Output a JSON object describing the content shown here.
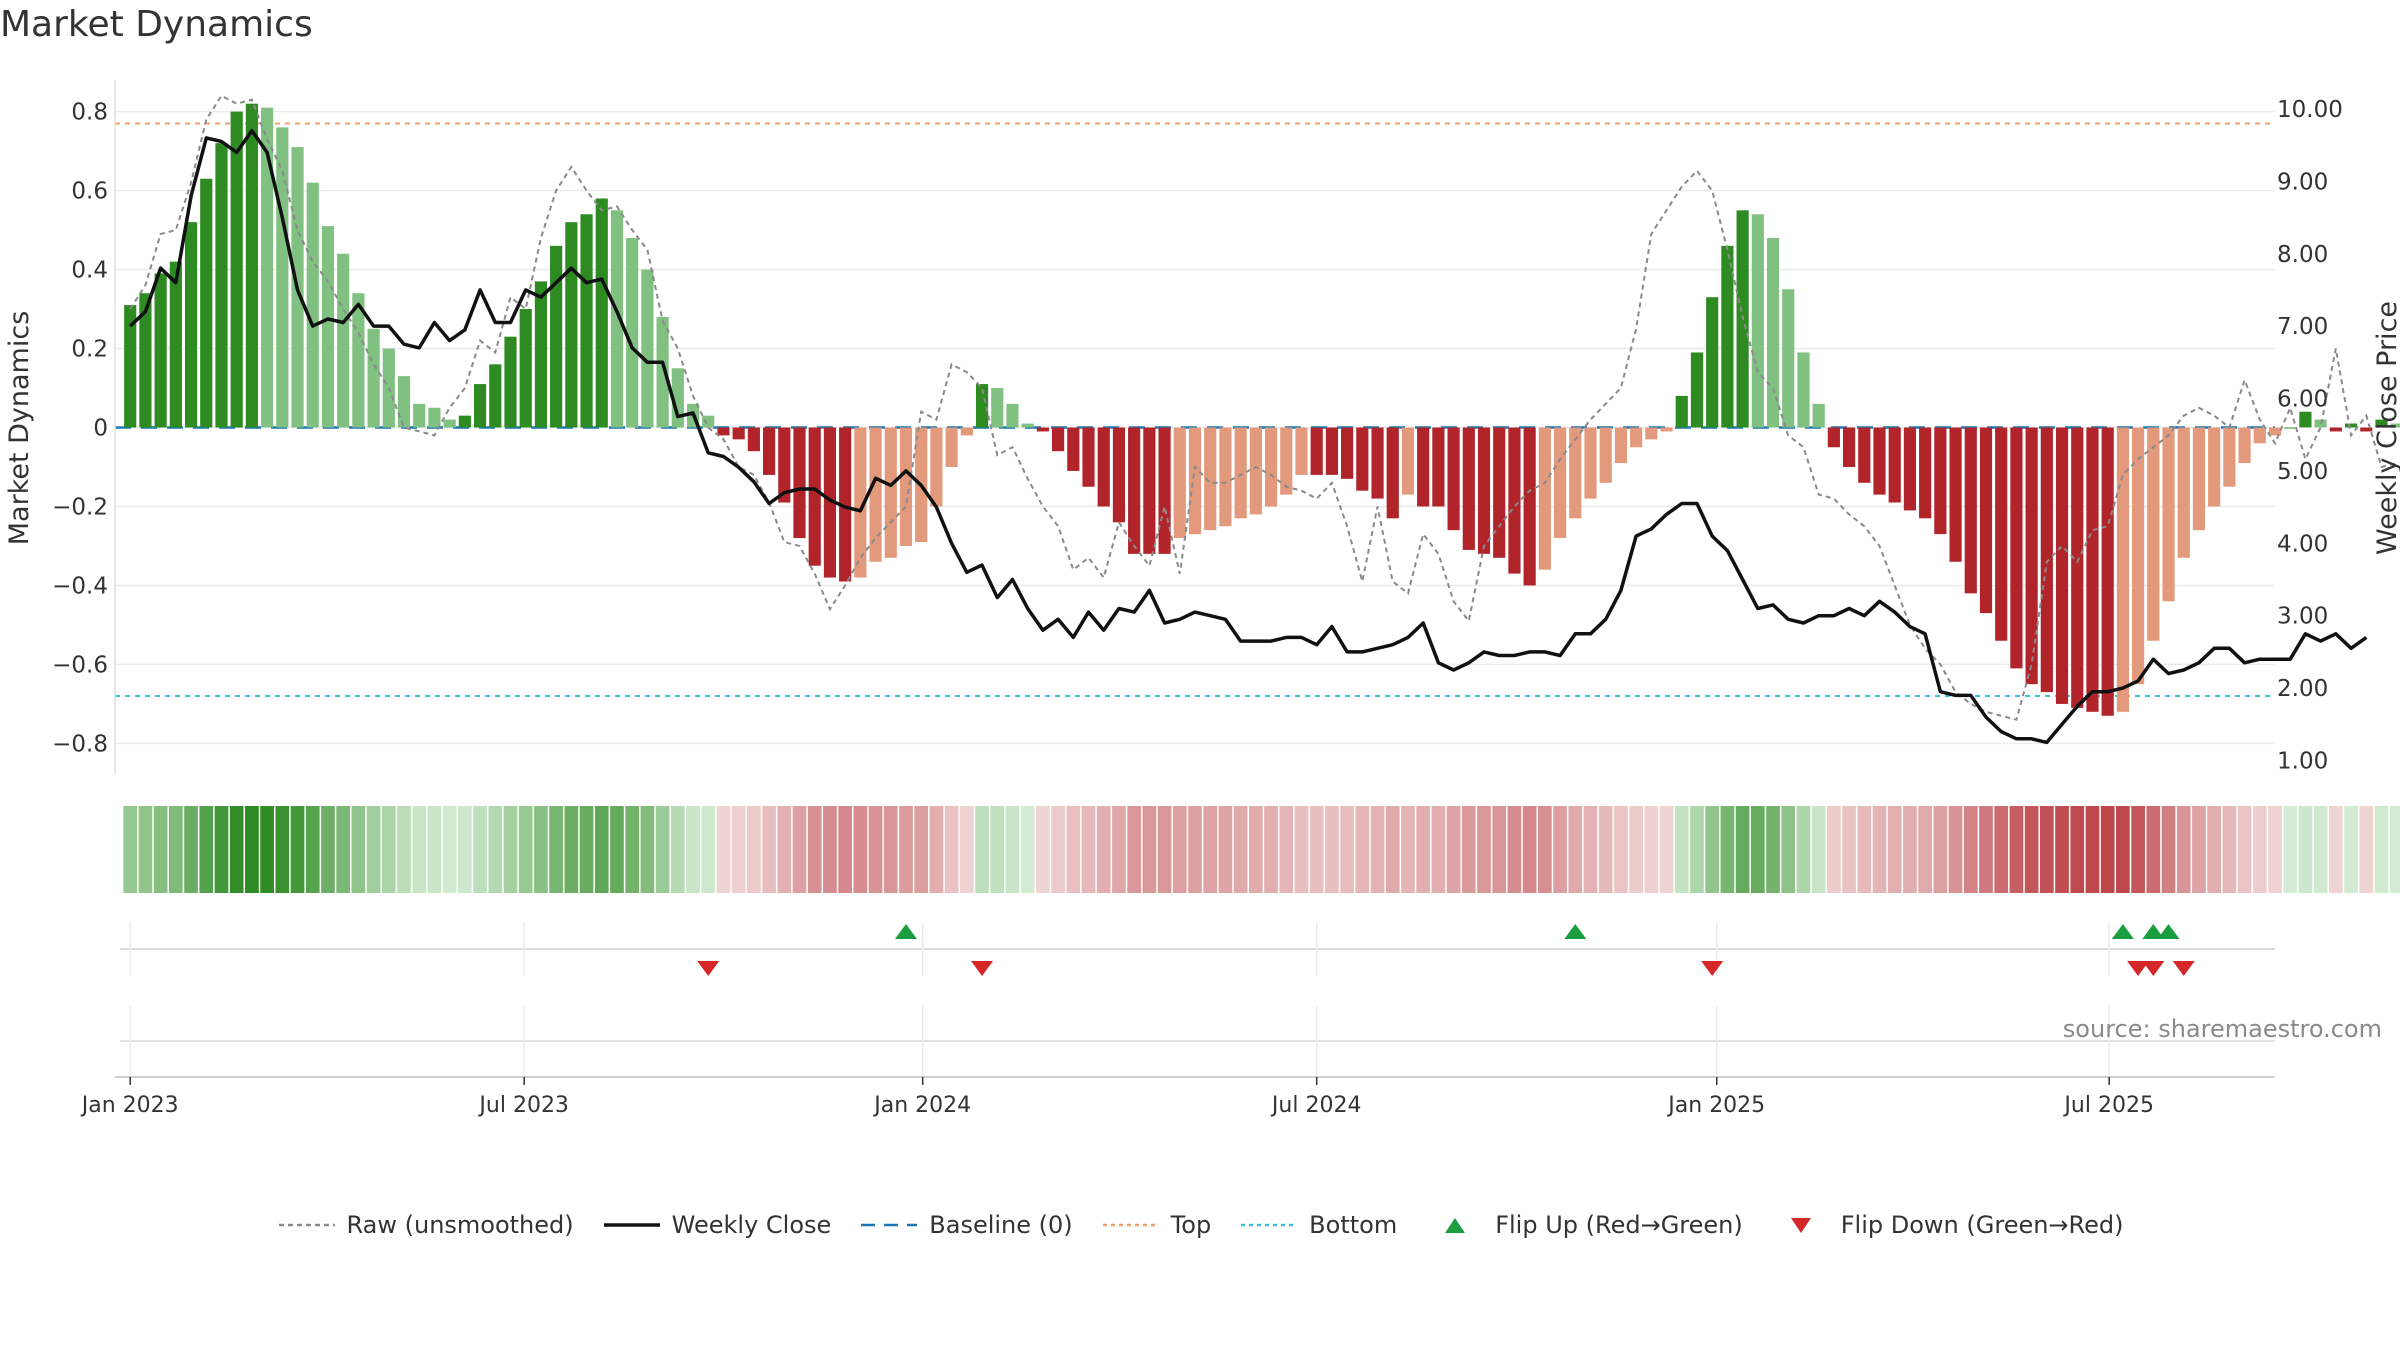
{
  "page": {
    "title": "Market Dynamics",
    "source": "source: sharemaestro.com"
  },
  "chart_data": {
    "type": "bar",
    "title": "Market Dynamics",
    "ylabel_left": "Market Dynamics",
    "ylabel_right": "Weekly Close Price",
    "ylim_left": [
      -0.88,
      0.88
    ],
    "ylim_right": [
      0.8,
      10.4
    ],
    "yticks_left": [
      {
        "v": 0.8,
        "label": "0.8"
      },
      {
        "v": 0.6,
        "label": "0.6"
      },
      {
        "v": 0.4,
        "label": "0.4"
      },
      {
        "v": 0.2,
        "label": "0.2"
      },
      {
        "v": 0,
        "label": "0"
      },
      {
        "v": -0.2,
        "label": "−0.2"
      },
      {
        "v": -0.4,
        "label": "−0.4"
      },
      {
        "v": -0.6,
        "label": "−0.6"
      },
      {
        "v": -0.8,
        "label": "−0.8"
      }
    ],
    "yticks_right": [
      {
        "v": 10,
        "label": "10.00"
      },
      {
        "v": 9,
        "label": "9.00"
      },
      {
        "v": 8,
        "label": "8.00"
      },
      {
        "v": 7,
        "label": "7.00"
      },
      {
        "v": 6,
        "label": "6.00"
      },
      {
        "v": 5,
        "label": "5.00"
      },
      {
        "v": 4,
        "label": "4.00"
      },
      {
        "v": 3,
        "label": "3.00"
      },
      {
        "v": 2,
        "label": "2.00"
      },
      {
        "v": 1,
        "label": "1.00"
      }
    ],
    "x_start_week": -1,
    "x_end_week": 141,
    "xticks": [
      {
        "w": 0,
        "label": "Jan 2023"
      },
      {
        "w": 25.9,
        "label": "Jul 2023"
      },
      {
        "w": 52.1,
        "label": "Jan 2024"
      },
      {
        "w": 78,
        "label": "Jul 2024"
      },
      {
        "w": 104.3,
        "label": "Jan 2025"
      },
      {
        "w": 130.1,
        "label": "Jul 2025"
      }
    ],
    "top_level": 0.77,
    "bottom_level": -0.68,
    "dynamics": [
      0.31,
      0.34,
      0.39,
      0.42,
      0.52,
      0.63,
      0.72,
      0.8,
      0.82,
      0.81,
      0.76,
      0.71,
      0.62,
      0.51,
      0.44,
      0.34,
      0.25,
      0.2,
      0.13,
      0.06,
      0.05,
      0.02,
      0.03,
      0.11,
      0.16,
      0.23,
      0.3,
      0.37,
      0.46,
      0.52,
      0.54,
      0.58,
      0.55,
      0.48,
      0.4,
      0.28,
      0.15,
      0.06,
      0.03,
      -0.02,
      -0.03,
      -0.06,
      -0.12,
      -0.19,
      -0.28,
      -0.35,
      -0.38,
      -0.39,
      -0.38,
      -0.34,
      -0.33,
      -0.3,
      -0.29,
      -0.2,
      -0.1,
      -0.02,
      0.11,
      0.1,
      0.06,
      0.01,
      -0.01,
      -0.06,
      -0.11,
      -0.15,
      -0.2,
      -0.24,
      -0.32,
      -0.32,
      -0.32,
      -0.28,
      -0.27,
      -0.26,
      -0.25,
      -0.23,
      -0.22,
      -0.2,
      -0.17,
      -0.12,
      -0.12,
      -0.12,
      -0.13,
      -0.16,
      -0.18,
      -0.23,
      -0.17,
      -0.2,
      -0.2,
      -0.26,
      -0.31,
      -0.32,
      -0.33,
      -0.37,
      -0.4,
      -0.36,
      -0.28,
      -0.23,
      -0.18,
      -0.14,
      -0.09,
      -0.05,
      -0.03,
      -0.01,
      0.08,
      0.19,
      0.33,
      0.46,
      0.55,
      0.54,
      0.48,
      0.35,
      0.19,
      0.06,
      -0.05,
      -0.1,
      -0.14,
      -0.17,
      -0.19,
      -0.21,
      -0.23,
      -0.27,
      -0.34,
      -0.42,
      -0.47,
      -0.54,
      -0.61,
      -0.65,
      -0.67,
      -0.7,
      -0.71,
      -0.72,
      -0.73,
      -0.72,
      -0.65,
      -0.54,
      -0.44,
      -0.33,
      -0.26,
      -0.2,
      -0.15,
      -0.09,
      -0.04,
      -0.02,
      0.0,
      0.04,
      0.02,
      -0.01,
      0.01,
      -0.01,
      0.02,
      0.01,
      -0.04
    ],
    "raw": [
      0.3,
      0.36,
      0.49,
      0.5,
      0.62,
      0.78,
      0.84,
      0.82,
      0.83,
      0.73,
      0.65,
      0.5,
      0.42,
      0.37,
      0.3,
      0.24,
      0.16,
      0.1,
      0.0,
      -0.01,
      -0.02,
      0.05,
      0.1,
      0.22,
      0.19,
      0.33,
      0.3,
      0.48,
      0.6,
      0.66,
      0.6,
      0.55,
      0.56,
      0.5,
      0.45,
      0.27,
      0.2,
      0.08,
      0.0,
      -0.03,
      -0.1,
      -0.12,
      -0.19,
      -0.29,
      -0.3,
      -0.37,
      -0.46,
      -0.4,
      -0.33,
      -0.28,
      -0.24,
      -0.2,
      0.04,
      0.02,
      0.16,
      0.14,
      0.1,
      -0.07,
      -0.05,
      -0.13,
      -0.2,
      -0.25,
      -0.36,
      -0.33,
      -0.38,
      -0.24,
      -0.3,
      -0.35,
      -0.2,
      -0.37,
      -0.1,
      -0.14,
      -0.14,
      -0.12,
      -0.1,
      -0.12,
      -0.15,
      -0.16,
      -0.18,
      -0.14,
      -0.25,
      -0.39,
      -0.2,
      -0.39,
      -0.42,
      -0.27,
      -0.32,
      -0.44,
      -0.49,
      -0.3,
      -0.25,
      -0.2,
      -0.16,
      -0.14,
      -0.08,
      -0.03,
      0.02,
      0.06,
      0.1,
      0.25,
      0.49,
      0.55,
      0.61,
      0.65,
      0.6,
      0.45,
      0.28,
      0.14,
      0.1,
      -0.02,
      -0.05,
      -0.17,
      -0.18,
      -0.22,
      -0.25,
      -0.3,
      -0.4,
      -0.5,
      -0.56,
      -0.6,
      -0.67,
      -0.7,
      -0.72,
      -0.73,
      -0.74,
      -0.6,
      -0.34,
      -0.3,
      -0.34,
      -0.26,
      -0.25,
      -0.12,
      -0.08,
      -0.05,
      -0.02,
      0.03,
      0.05,
      0.03,
      0.0,
      0.12,
      0.02,
      -0.04,
      0.05,
      -0.08,
      0.0,
      0.2,
      -0.02,
      0.03,
      -0.1,
      -0.09
    ],
    "weekly_close": [
      7.0,
      7.2,
      7.8,
      7.6,
      8.8,
      9.6,
      9.55,
      9.4,
      9.7,
      9.4,
      8.5,
      7.5,
      7.0,
      7.1,
      7.05,
      7.3,
      7.0,
      7.0,
      6.75,
      6.7,
      7.05,
      6.8,
      6.95,
      7.5,
      7.05,
      7.05,
      7.5,
      7.4,
      7.6,
      7.8,
      7.6,
      7.65,
      7.2,
      6.7,
      6.5,
      6.5,
      5.75,
      5.8,
      5.25,
      5.2,
      5.05,
      4.85,
      4.55,
      4.7,
      4.75,
      4.75,
      4.6,
      4.5,
      4.45,
      4.9,
      4.8,
      5.0,
      4.8,
      4.5,
      4.0,
      3.6,
      3.7,
      3.25,
      3.5,
      3.1,
      2.8,
      2.95,
      2.7,
      3.05,
      2.8,
      3.1,
      3.05,
      3.35,
      2.9,
      2.95,
      3.05,
      3.0,
      2.95,
      2.65,
      2.65,
      2.65,
      2.7,
      2.7,
      2.6,
      2.85,
      2.5,
      2.5,
      2.55,
      2.6,
      2.7,
      2.9,
      2.35,
      2.25,
      2.35,
      2.5,
      2.45,
      2.45,
      2.5,
      2.5,
      2.45,
      2.75,
      2.75,
      2.95,
      3.35,
      4.1,
      4.2,
      4.4,
      4.55,
      4.55,
      4.1,
      3.9,
      3.5,
      3.1,
      3.15,
      2.95,
      2.9,
      3.0,
      3.0,
      3.1,
      3.0,
      3.2,
      3.05,
      2.85,
      2.75,
      1.95,
      1.9,
      1.9,
      1.6,
      1.4,
      1.3,
      1.3,
      1.25,
      1.5,
      1.75,
      1.95,
      1.95,
      2.0,
      2.1,
      2.4,
      2.2,
      2.25,
      2.35,
      2.55,
      2.55,
      2.35,
      2.4,
      2.4,
      2.4,
      2.75,
      2.65,
      2.75,
      2.55,
      2.7
    ],
    "flip_up_weeks": [
      51,
      95,
      131,
      133,
      134
    ],
    "flip_down_weeks": [
      38,
      56,
      104,
      132,
      133,
      135
    ],
    "legend": [
      {
        "label": "Raw (unsmoothed)",
        "kind": "dashed",
        "color": "#8a8a8a"
      },
      {
        "label": "Weekly Close",
        "kind": "solid",
        "color": "#111111"
      },
      {
        "label": "Baseline (0)",
        "kind": "longdash",
        "color": "#1f77b4"
      },
      {
        "label": "Top",
        "kind": "dotted",
        "color": "#f0a06a"
      },
      {
        "label": "Bottom",
        "kind": "dotted",
        "color": "#3bc3dc"
      },
      {
        "label": "Flip Up (Red→Green)",
        "kind": "tri-up",
        "color": "#1a9e40"
      },
      {
        "label": "Flip Down (Green→Red)",
        "kind": "tri-down",
        "color": "#d62728"
      }
    ],
    "colors": {
      "green_dark": "#2e8b22",
      "green_light": "#80c080",
      "red_dark": "#b0242a",
      "red_light": "#e39a7c",
      "raw": "#8a8a8a",
      "close": "#111111",
      "baseline": "#1f77b4",
      "top": "#f0a06a",
      "bottom": "#3bc3dc"
    }
  }
}
